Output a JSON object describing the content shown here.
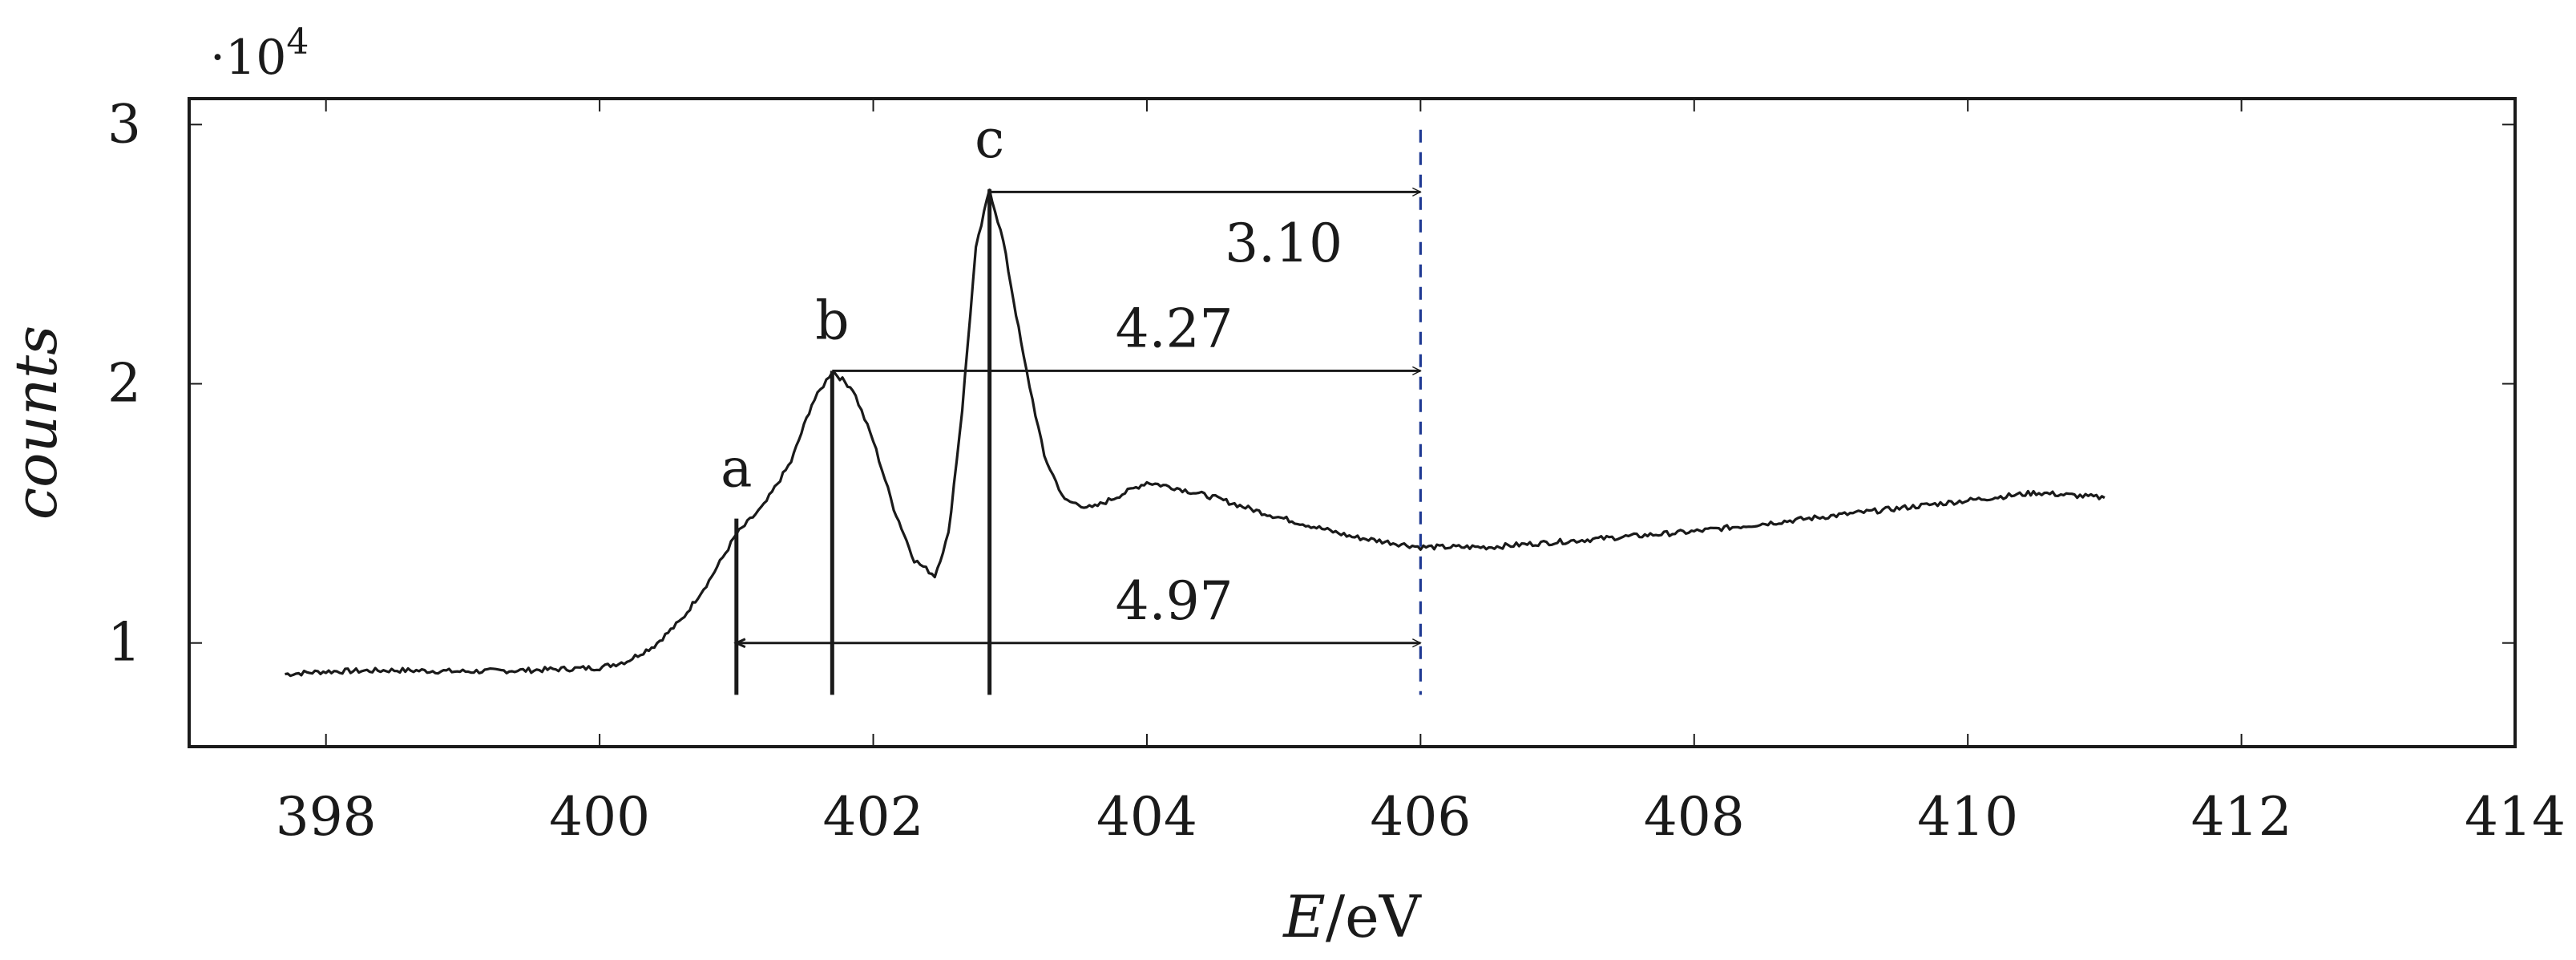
{
  "chart_data": {
    "type": "line",
    "title": "",
    "xlabel_italic": "E",
    "xlabel_unit": "/eV",
    "ylabel": "counts",
    "y_multiplier_base": "·10",
    "y_multiplier_exp": "4",
    "xlim": [
      397,
      414
    ],
    "ylim": [
      0.6,
      3.1
    ],
    "x_ticks": [
      398,
      400,
      402,
      404,
      406,
      408,
      410,
      412,
      414
    ],
    "x_tick_labels": [
      "398",
      "400",
      "402",
      "404",
      "406",
      "408",
      "410",
      "412",
      "414"
    ],
    "y_ticks": [
      1,
      2,
      3
    ],
    "y_tick_labels": [
      "1",
      "2",
      "3"
    ],
    "grid": false,
    "series": [
      {
        "name": "spectrum",
        "color": "#1a1a1a",
        "points": [
          [
            397.7,
            0.88
          ],
          [
            398.0,
            0.89
          ],
          [
            398.5,
            0.895
          ],
          [
            399.0,
            0.89
          ],
          [
            399.5,
            0.895
          ],
          [
            400.0,
            0.905
          ],
          [
            400.2,
            0.93
          ],
          [
            400.4,
            0.99
          ],
          [
            400.6,
            1.09
          ],
          [
            400.8,
            1.24
          ],
          [
            401.0,
            1.42
          ],
          [
            401.2,
            1.53
          ],
          [
            401.4,
            1.7
          ],
          [
            401.55,
            1.92
          ],
          [
            401.7,
            2.05
          ],
          [
            401.85,
            1.98
          ],
          [
            402.0,
            1.78
          ],
          [
            402.15,
            1.52
          ],
          [
            402.3,
            1.32
          ],
          [
            402.45,
            1.26
          ],
          [
            402.55,
            1.42
          ],
          [
            402.65,
            1.9
          ],
          [
            402.75,
            2.52
          ],
          [
            402.85,
            2.75
          ],
          [
            402.95,
            2.55
          ],
          [
            403.1,
            2.1
          ],
          [
            403.25,
            1.72
          ],
          [
            403.4,
            1.55
          ],
          [
            403.6,
            1.52
          ],
          [
            403.8,
            1.57
          ],
          [
            404.0,
            1.62
          ],
          [
            404.2,
            1.6
          ],
          [
            404.5,
            1.56
          ],
          [
            404.8,
            1.51
          ],
          [
            405.0,
            1.48
          ],
          [
            405.5,
            1.41
          ],
          [
            406.0,
            1.37
          ],
          [
            406.5,
            1.37
          ],
          [
            407.0,
            1.39
          ],
          [
            407.5,
            1.41
          ],
          [
            408.0,
            1.43
          ],
          [
            408.5,
            1.46
          ],
          [
            409.0,
            1.49
          ],
          [
            409.5,
            1.52
          ],
          [
            410.0,
            1.55
          ],
          [
            410.5,
            1.58
          ],
          [
            411.0,
            1.56
          ]
        ]
      }
    ],
    "reference_line": {
      "x": 406,
      "color": "#1f3a93",
      "style": "dashed"
    },
    "peak_markers": [
      {
        "label": "a",
        "x": 401.0,
        "y": 1.48
      },
      {
        "label": "b",
        "x": 401.7,
        "y": 2.05
      },
      {
        "label": "c",
        "x": 402.85,
        "y": 2.75
      }
    ],
    "annotations": [
      {
        "text": "3.10",
        "from_x": 402.85,
        "to_x": 406,
        "y": 2.74,
        "style": "arrow-right",
        "label_x": 405.0,
        "label_y": 2.54
      },
      {
        "text": "4.27",
        "from_x": 401.7,
        "to_x": 406,
        "y": 2.05,
        "style": "arrow-right",
        "label_x": 404.2,
        "label_y": 2.21
      },
      {
        "text": "4.97",
        "from_x": 401.0,
        "to_x": 406,
        "y": 1.0,
        "style": "arrow-both",
        "label_x": 404.2,
        "label_y": 1.16
      }
    ]
  }
}
